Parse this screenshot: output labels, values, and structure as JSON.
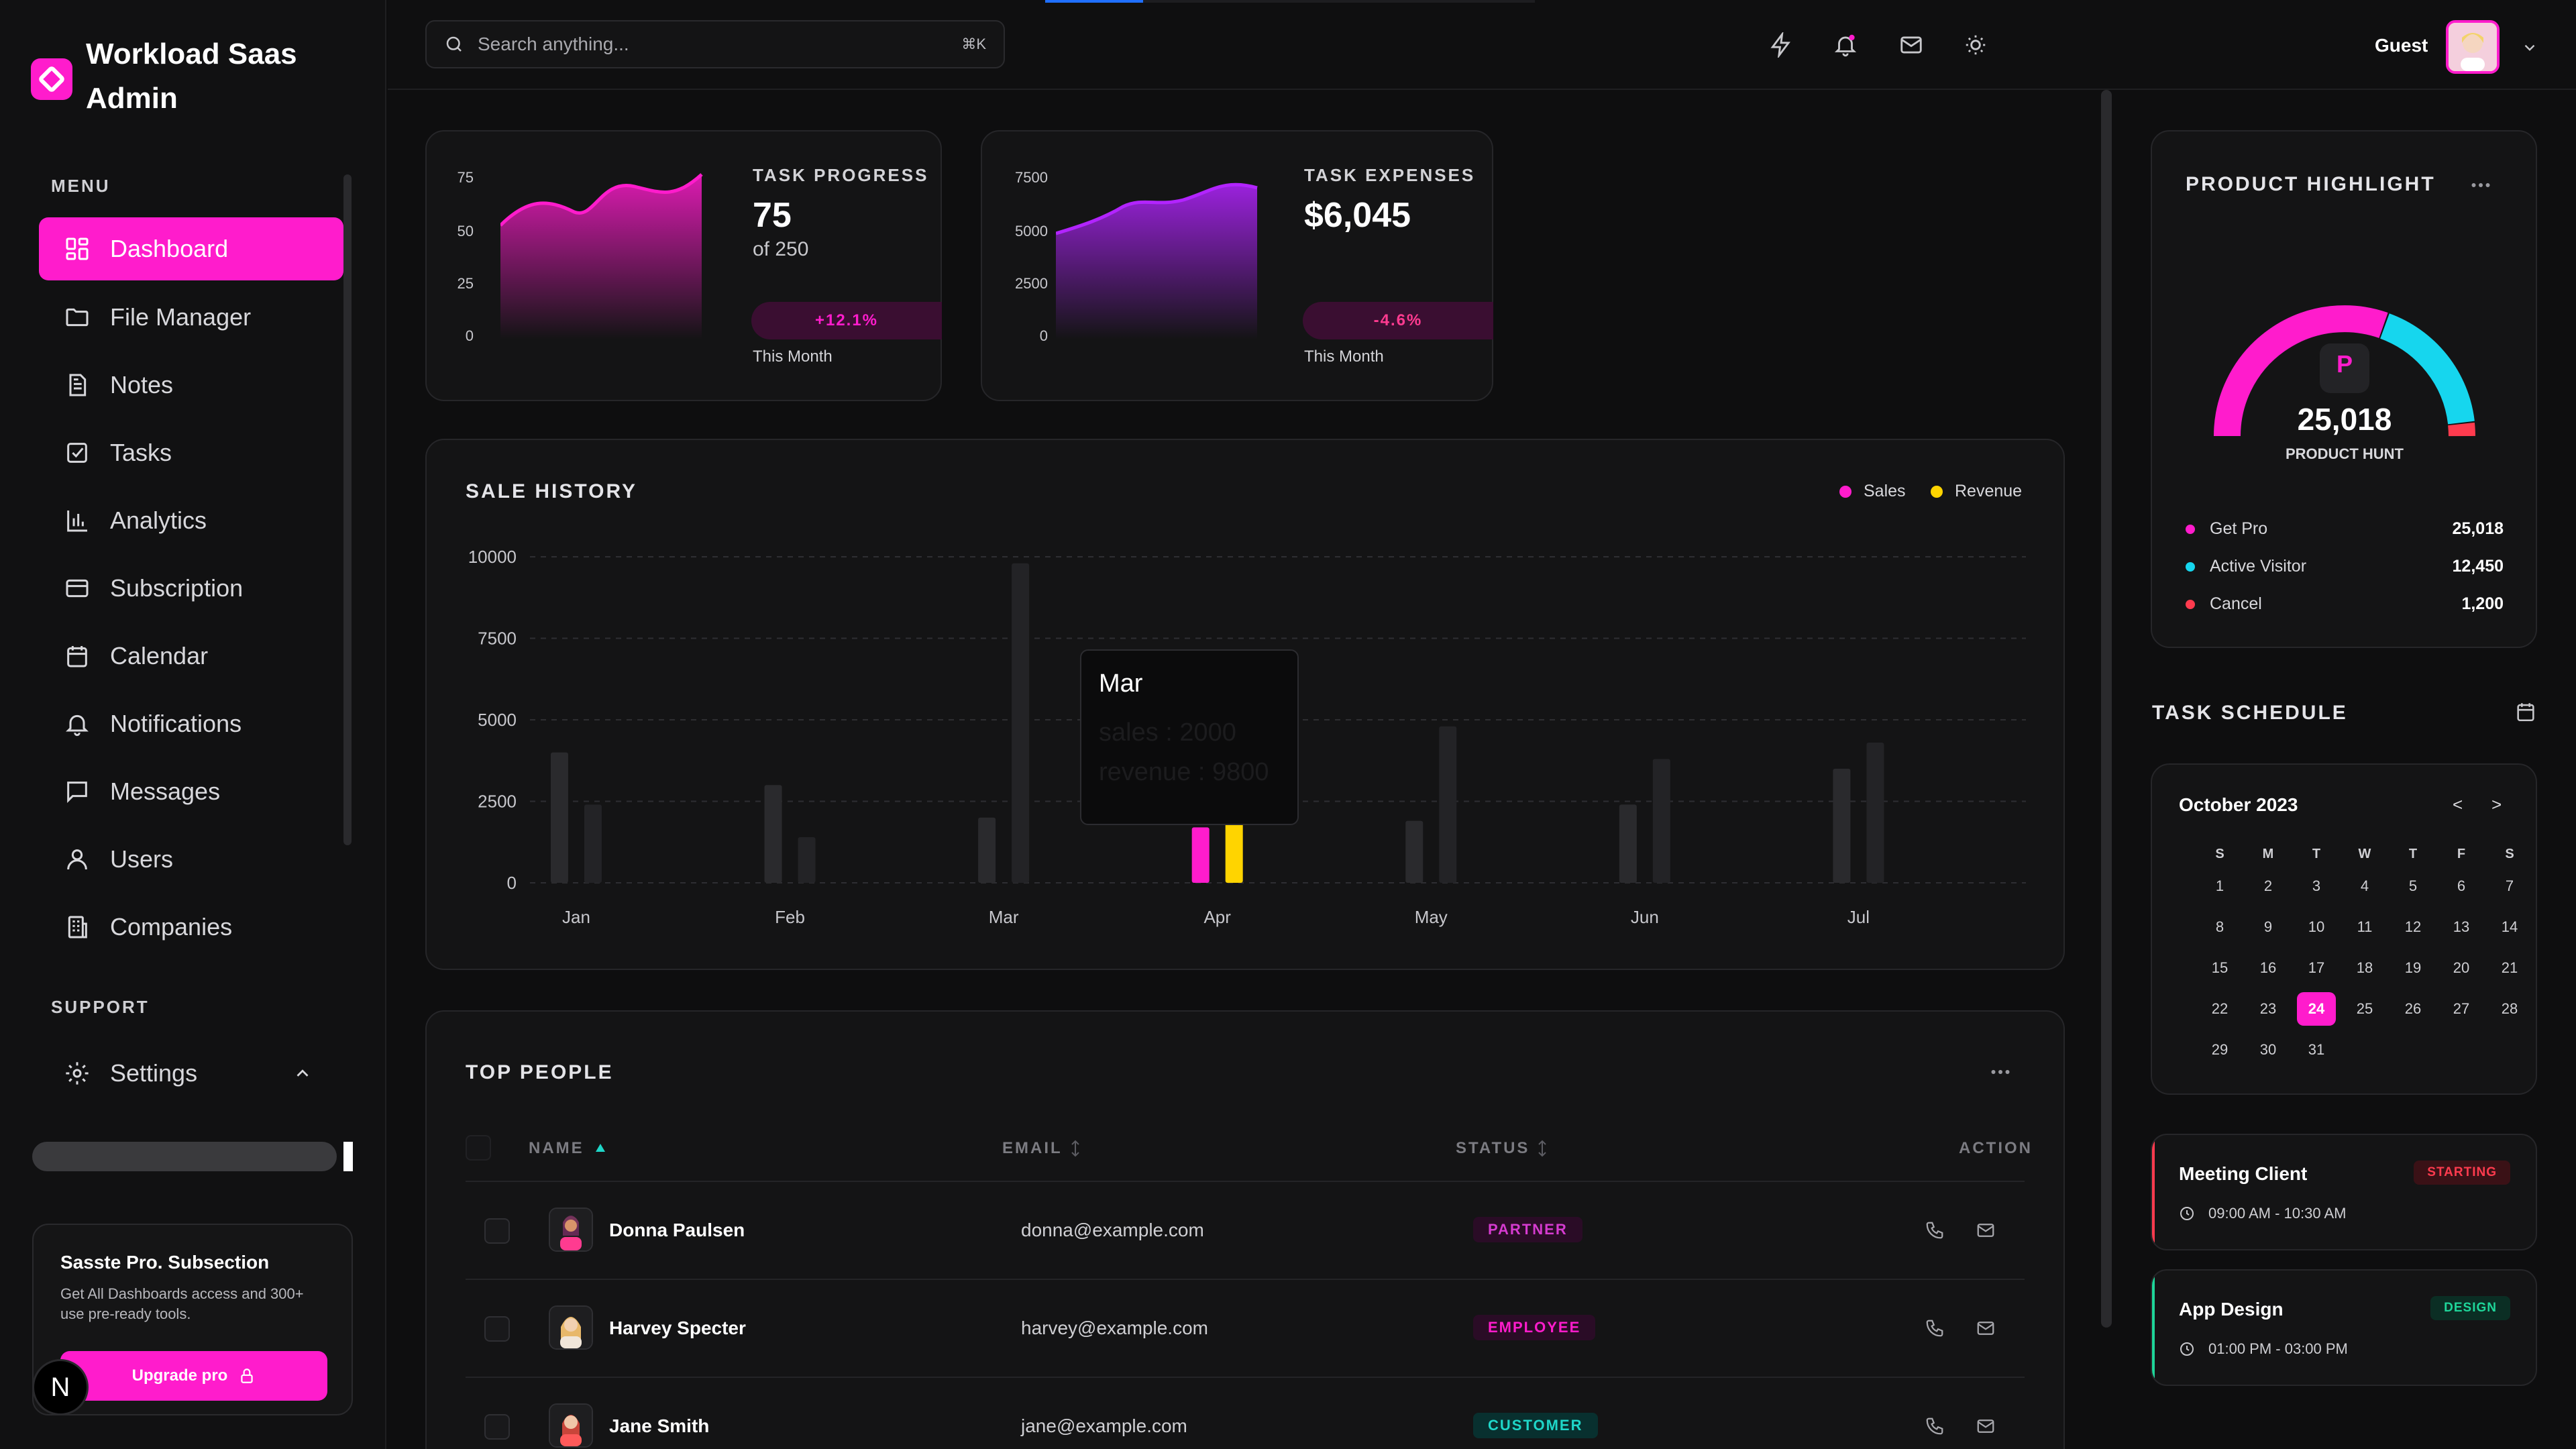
{
  "app": {
    "title": "Workload Saas Admin"
  },
  "sidebar": {
    "menu_label": "MENU",
    "support_label": "SUPPORT",
    "items": [
      {
        "label": "Dashboard",
        "icon": "grid-icon",
        "active": true
      },
      {
        "label": "File Manager",
        "icon": "folder-icon"
      },
      {
        "label": "Notes",
        "icon": "notes-icon"
      },
      {
        "label": "Tasks",
        "icon": "checkbox-icon"
      },
      {
        "label": "Analytics",
        "icon": "bar-chart-icon"
      },
      {
        "label": "Subscription",
        "icon": "card-icon"
      },
      {
        "label": "Calendar",
        "icon": "calendar-icon"
      },
      {
        "label": "Notifications",
        "icon": "bell-icon"
      },
      {
        "label": "Messages",
        "icon": "message-icon"
      },
      {
        "label": "Users",
        "icon": "user-icon"
      },
      {
        "label": "Companies",
        "icon": "building-icon"
      }
    ],
    "settings": {
      "label": "Settings",
      "icon": "gear-icon"
    },
    "promo": {
      "title": "Sasste Pro. Subsection",
      "text": "Get All Dashboards access and 300+ use pre-ready tools.",
      "button": "Upgrade pro"
    },
    "badge": "N"
  },
  "topbar": {
    "search_placeholder": "Search anything...",
    "search_shortcut": "⌘K",
    "user_name": "Guest"
  },
  "stats": [
    {
      "label": "TASK PROGRESS",
      "value": "75",
      "sub": "of 250",
      "change": "+12.1%",
      "period": "This Month",
      "y_ticks": [
        "75",
        "50",
        "25",
        "0"
      ],
      "color": "#ff1ccc"
    },
    {
      "label": "TASK EXPENSES",
      "value": "$6,045",
      "change": "-4.6%",
      "period": "This Month",
      "y_ticks": [
        "7500",
        "5000",
        "2500",
        "0"
      ],
      "color": "#b224ff"
    }
  ],
  "sale_history": {
    "title": "SALE HISTORY",
    "tooltip": {
      "title": "Mar",
      "sales": "sales : 2000",
      "revenue": "revenue : 9800"
    }
  },
  "chart_data": {
    "type": "bar",
    "title": "SALE HISTORY",
    "categories": [
      "Jan",
      "Feb",
      "Mar",
      "Apr",
      "May",
      "Jun",
      "Jul"
    ],
    "series": [
      {
        "name": "Sales",
        "values": [
          4000,
          3000,
          2000,
          1700,
          1900,
          2400,
          3500
        ],
        "color": "#ff1ccc"
      },
      {
        "name": "Revenue",
        "values": [
          2400,
          1400,
          9800,
          3900,
          4800,
          3800,
          4300
        ],
        "color": "#ffd400"
      }
    ],
    "ylim": [
      0,
      10000
    ],
    "y_ticks": [
      "10000",
      "7500",
      "5000",
      "2500",
      "0"
    ],
    "highlight_category": "Apr",
    "grid": true,
    "legend": "top-right"
  },
  "top_people": {
    "title": "TOP PEOPLE",
    "columns": {
      "name": "NAME",
      "email": "EMAIL",
      "status": "STATUS",
      "action": "ACTION"
    },
    "rows": [
      {
        "name": "Donna Paulsen",
        "email": "donna@example.com",
        "status": "PARTNER"
      },
      {
        "name": "Harvey Specter",
        "email": "harvey@example.com",
        "status": "EMPLOYEE"
      },
      {
        "name": "Jane Smith",
        "email": "jane@example.com",
        "status": "CUSTOMER"
      }
    ]
  },
  "product_highlight": {
    "title": "PRODUCT HIGHLIGHT",
    "gauge_letter": "P",
    "value": "25,018",
    "caption": "PRODUCT HUNT",
    "items": [
      {
        "label": "Get Pro",
        "value": "25,018",
        "color": "#ff1ccc"
      },
      {
        "label": "Active Visitor",
        "value": "12,450",
        "color": "#16d6ee"
      },
      {
        "label": "Cancel",
        "value": "1,200",
        "color": "#ff3b4e"
      }
    ]
  },
  "task_schedule": {
    "title": "TASK SCHEDULE",
    "month": "October 2023",
    "prev": "<",
    "next": ">",
    "dow": [
      "S",
      "M",
      "T",
      "W",
      "T",
      "F",
      "S"
    ],
    "selected_day": 24,
    "days": [
      "1",
      "2",
      "3",
      "4",
      "5",
      "6",
      "7",
      "8",
      "9",
      "10",
      "11",
      "12",
      "13",
      "14",
      "15",
      "16",
      "17",
      "18",
      "19",
      "20",
      "21",
      "22",
      "23",
      "24",
      "25",
      "26",
      "27",
      "28",
      "29",
      "30",
      "31"
    ],
    "events": [
      {
        "title": "Meeting Client",
        "badge": "STARTING",
        "time": "09:00 AM - 10:30 AM",
        "color": "#ff3b4e"
      },
      {
        "title": "App Design",
        "badge": "DESIGN",
        "time": "01:00 PM - 03:00 PM",
        "color": "#1fd69a"
      }
    ]
  }
}
